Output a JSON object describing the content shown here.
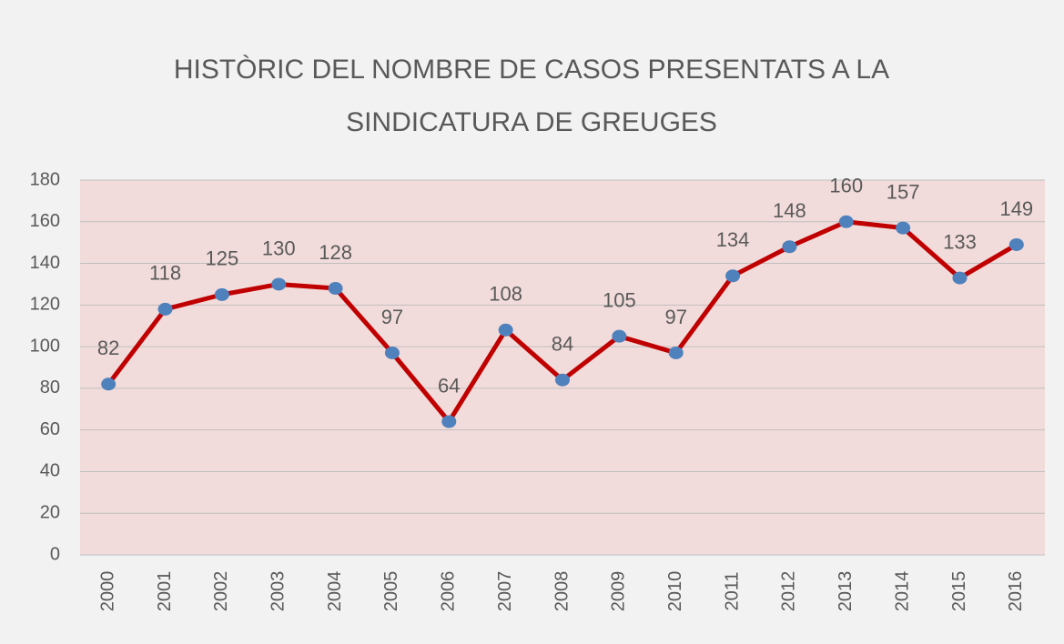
{
  "chart_data": {
    "type": "line",
    "title": "HISTÒRIC DEL NOMBRE DE CASOS PRESENTATS A LA SINDICATURA DE GREUGES",
    "categories": [
      "2000",
      "2001",
      "2002",
      "2003",
      "2004",
      "2005",
      "2006",
      "2007",
      "2008",
      "2009",
      "2010",
      "2011",
      "2012",
      "2013",
      "2014",
      "2015",
      "2016"
    ],
    "values": [
      82,
      118,
      125,
      130,
      128,
      97,
      64,
      108,
      84,
      105,
      97,
      134,
      148,
      160,
      157,
      133,
      149
    ],
    "color": "#c00000",
    "marker_color": "#4f81bd",
    "ylim": [
      0,
      180
    ],
    "yticks": [
      0,
      20,
      40,
      60,
      80,
      100,
      120,
      140,
      160,
      180
    ],
    "grid": true
  }
}
